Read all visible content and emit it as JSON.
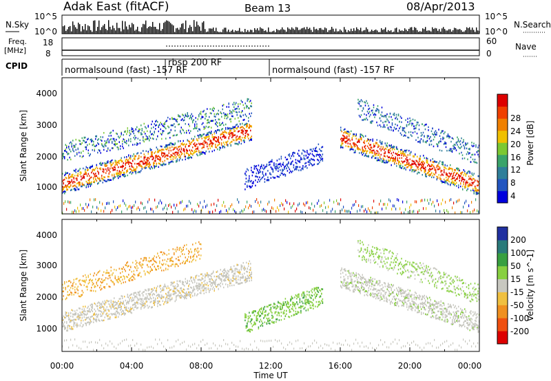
{
  "header": {
    "station": "Adak East (fitACF)",
    "beam": "Beam 13",
    "date": "08/Apr/2013"
  },
  "noise_panel": {
    "left_label": "N.Sky",
    "right_label": "N.Search",
    "left_ticks": [
      "10^5",
      "10^0"
    ],
    "right_ticks": [
      "10^5",
      "10^0"
    ]
  },
  "freq_panel": {
    "left_label_1": "Freq.",
    "left_label_2": "[MHz]",
    "right_label": "Nave",
    "left_ticks": [
      "18",
      "8"
    ],
    "right_ticks": [
      "60",
      "0"
    ]
  },
  "cpid": {
    "label": "CPID",
    "segments": [
      {
        "text": "normalsound (fast) -157 RF",
        "start_hour": 0,
        "end_hour": 6
      },
      {
        "text": "rbsp 200 RF",
        "start_hour": 6,
        "end_hour": 12
      },
      {
        "text": "normalsound (fast) -157 RF",
        "start_hour": 12,
        "end_hour": 24
      }
    ]
  },
  "x_axis": {
    "label": "Time UT",
    "ticks": [
      "00:00",
      "04:00",
      "08:00",
      "12:00",
      "16:00",
      "20:00",
      "00:00"
    ]
  },
  "power_panel": {
    "ylabel": "Slant Range [km]",
    "yticks": [
      "4000",
      "3000",
      "2000",
      "1000"
    ],
    "colorbar_label": "Power [dB]",
    "colorbar_ticks": [
      "28",
      "24",
      "20",
      "16",
      "12",
      "8",
      "4"
    ],
    "colors": [
      "#0000dd",
      "#2255c0",
      "#2f7f9a",
      "#3aa46a",
      "#7cc832",
      "#f0c000",
      "#f08000",
      "#f04000",
      "#dd0000"
    ]
  },
  "velocity_panel": {
    "ylabel": "Slant Range [km]",
    "yticks": [
      "4000",
      "3000",
      "2000",
      "1000"
    ],
    "colorbar_label": "Velocity [m s^-1]",
    "colorbar_ticks": [
      "200",
      "100",
      "50",
      "15",
      "-15",
      "-50",
      "-100",
      "-200"
    ],
    "colors": [
      "#2030a0",
      "#2a7a7a",
      "#38a040",
      "#88d040",
      "#c8c8c0",
      "#f0c040",
      "#f09020",
      "#f05010",
      "#dd0000"
    ]
  },
  "chart_data": [
    {
      "type": "heatmap",
      "title": "Power [dB]",
      "xlabel": "Time UT",
      "ylabel": "Slant Range [km]",
      "xlim": [
        0,
        24
      ],
      "ylim": [
        0,
        4600
      ],
      "clim": [
        0,
        32
      ],
      "bands": [
        {
          "hours": [
            0,
            10.9
          ],
          "range_km": [
            1050,
            2850
          ],
          "power_db": 26
        },
        {
          "hours": [
            0,
            10.9
          ],
          "range_km": [
            2100,
            3600
          ],
          "power_db": 14
        },
        {
          "hours": [
            10.5,
            15.0
          ],
          "range_km": [
            1200,
            2100
          ],
          "power_db": 6
        },
        {
          "hours": [
            16.0,
            24.0
          ],
          "range_km": [
            2600,
            1000
          ],
          "power_db": 24
        },
        {
          "hours": [
            17.0,
            24.0
          ],
          "range_km": [
            3600,
            2000
          ],
          "power_db": 8
        }
      ]
    },
    {
      "type": "heatmap",
      "title": "Velocity [m s^-1]",
      "xlabel": "Time UT",
      "ylabel": "Slant Range [km]",
      "xlim": [
        0,
        24
      ],
      "ylim": [
        0,
        4600
      ],
      "clim": [
        -200,
        200
      ],
      "bands": [
        {
          "hours": [
            0,
            10.9
          ],
          "range_km": [
            1050,
            2850
          ],
          "velocity": 0
        },
        {
          "hours": [
            0,
            8.0
          ],
          "range_km": [
            2100,
            3600
          ],
          "velocity": -40
        },
        {
          "hours": [
            10.5,
            15.0
          ],
          "range_km": [
            1000,
            2000
          ],
          "velocity": 45
        },
        {
          "hours": [
            16.0,
            24.0
          ],
          "range_km": [
            2600,
            1000
          ],
          "velocity": 0
        },
        {
          "hours": [
            17.0,
            24.0
          ],
          "range_km": [
            3600,
            2000
          ],
          "velocity": 30
        }
      ]
    }
  ]
}
